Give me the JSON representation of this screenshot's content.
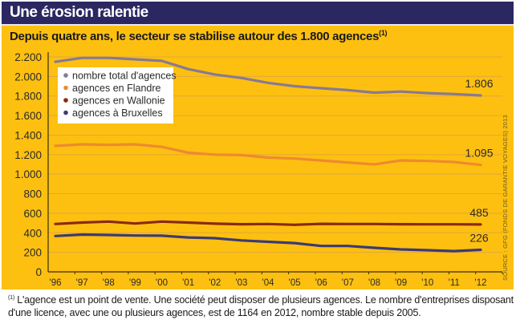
{
  "header": {
    "title": "Une érosion ralentie"
  },
  "chart_data": {
    "type": "line",
    "title": "Depuis quatre ans, le secteur se stabilise autour des 1.800 agences",
    "title_footnote_mark": "(1)",
    "xlabel": "",
    "ylabel": "",
    "categories": [
      "'96",
      "'97",
      "'98",
      "'99",
      "'00",
      "'01",
      "'02",
      "'03",
      "'04",
      "'05",
      "'06",
      "'07",
      "'08",
      "'09",
      "'10",
      "'11",
      "'12"
    ],
    "ylim": [
      0,
      2200
    ],
    "yticks": [
      0,
      200,
      400,
      600,
      800,
      1000,
      1200,
      1400,
      1600,
      1800,
      2000,
      2200
    ],
    "ytick_labels": [
      "0",
      "200",
      "400",
      "600",
      "800",
      "1.000",
      "1.200",
      "1.400",
      "1.600",
      "1.800",
      "2.000",
      "2.200"
    ],
    "grid": true,
    "legend_position": "top-left",
    "series": [
      {
        "name": "nombre total d'agences",
        "color": "#877a93",
        "values": [
          2150,
          2190,
          2190,
          2175,
          2160,
          2075,
          2020,
          1985,
          1935,
          1900,
          1880,
          1860,
          1835,
          1845,
          1830,
          1820,
          1806
        ],
        "end_label": "1.806"
      },
      {
        "name": "agences en Flandre",
        "color": "#ee8a2e",
        "values": [
          1290,
          1305,
          1300,
          1305,
          1280,
          1220,
          1200,
          1195,
          1170,
          1160,
          1140,
          1120,
          1100,
          1140,
          1135,
          1125,
          1095
        ],
        "end_label": "1.095"
      },
      {
        "name": "agences en Wallonie",
        "color": "#8a2a12",
        "values": [
          490,
          505,
          515,
          495,
          515,
          505,
          493,
          488,
          490,
          482,
          492,
          490,
          490,
          488,
          487,
          487,
          485
        ],
        "end_label": "485"
      },
      {
        "name": "agences à Bruxelles",
        "color": "#3c3a75",
        "values": [
          367,
          382,
          378,
          372,
          370,
          352,
          345,
          322,
          308,
          295,
          265,
          265,
          246,
          230,
          222,
          213,
          226
        ],
        "end_label": "226"
      }
    ],
    "source": "SOURCE : GFG (FONDS DE GARANTIE VOYAGES) 2013"
  },
  "footnote": {
    "mark": "(1)",
    "text": " L'agence est un point de vente. Une société peut disposer de plusieurs agences. Le nombre d'entreprises disposant  d'une licence, avec une ou plusieurs agences, est de 1164 en 2012, nombre stable depuis 2005."
  },
  "colors": {
    "header_bg": "#2b2761",
    "panel_bg": "#fdc010",
    "gridline": "#e0a83a"
  }
}
